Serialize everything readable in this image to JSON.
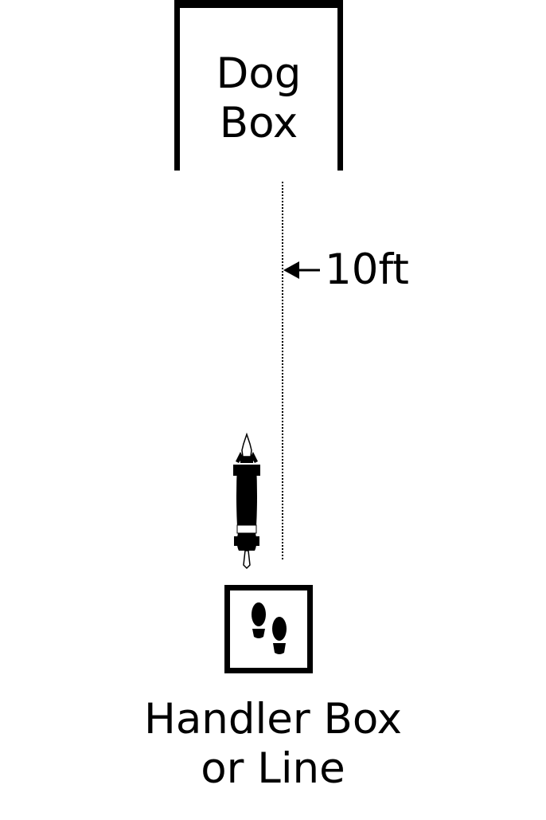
{
  "dog_box": {
    "line1": "Dog",
    "line2": "Box"
  },
  "distance": {
    "label": "10ft"
  },
  "handler_box": {
    "line1": "Handler Box",
    "line2": "or Line",
    "icon": "footprints-icon"
  },
  "dog": {
    "icon": "dog-top-view-icon"
  }
}
